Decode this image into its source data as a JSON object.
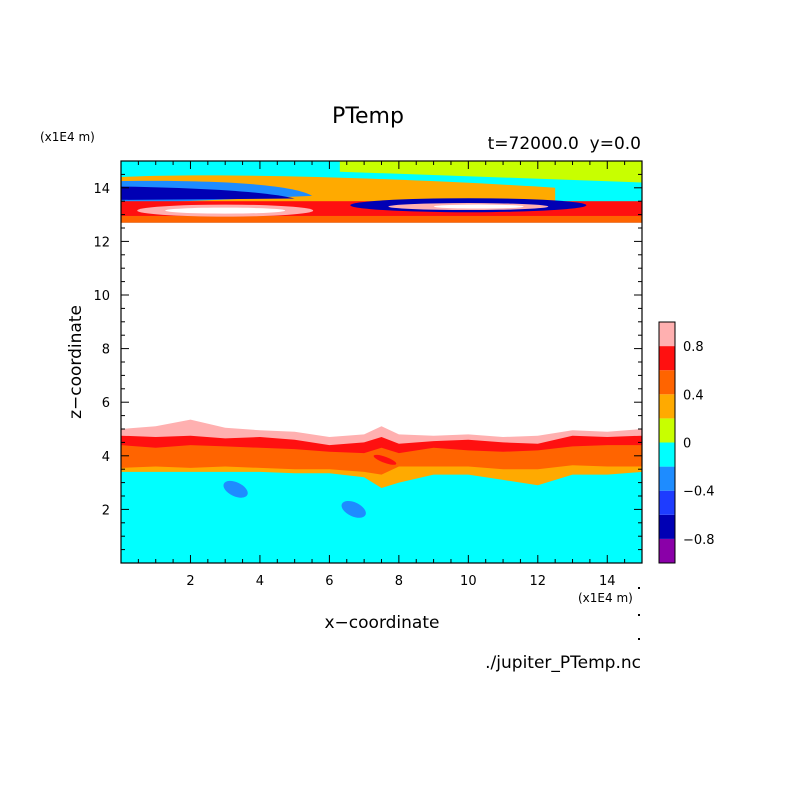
{
  "chart_data": {
    "type": "heatmap",
    "title": "PTemp",
    "subtitle": "t=72000.0  y=0.0",
    "xlabel": "x−coordinate",
    "ylabel": "z−coordinate",
    "x_unit": "(x1E4 m)",
    "y_unit": "(x1E4 m)",
    "footer": "./jupiter_PTemp.nc",
    "xlim": [
      0,
      15
    ],
    "ylim": [
      0,
      15
    ],
    "xticks": [
      2,
      4,
      6,
      8,
      10,
      12,
      14
    ],
    "yticks": [
      2,
      4,
      6,
      8,
      10,
      12,
      14
    ],
    "xtick_labels": [
      "2",
      "4",
      "6",
      "8",
      "10",
      "12",
      "14"
    ],
    "ytick_labels": [
      "2",
      "4",
      "6",
      "8",
      "10",
      "12",
      "14"
    ],
    "colorbar": {
      "levels": [
        -1.0,
        -0.8,
        -0.6,
        -0.4,
        -0.2,
        0.0,
        0.2,
        0.4,
        0.6,
        0.8,
        1.0
      ],
      "colors": [
        "#8a00a8",
        "#0000b4",
        "#1e3cff",
        "#1e8cff",
        "#00ffff",
        "#c8ff00",
        "#ffaa00",
        "#ff6400",
        "#ff1010",
        "#ffb0b0"
      ],
      "tick_values": [
        0.8,
        0.4,
        0,
        -0.4,
        -0.8
      ],
      "tick_labels": [
        "0.8",
        "0.4",
        "0",
        "−0.4",
        "−0.8"
      ]
    },
    "lower_layer": {
      "z_range": [
        0,
        5.0
      ],
      "x": [
        0,
        1,
        2,
        3,
        4,
        5,
        6,
        7,
        7.5,
        8,
        9,
        10,
        11,
        12,
        13,
        14,
        15
      ],
      "top_0.8": [
        5.0,
        5.1,
        5.35,
        5.05,
        4.95,
        4.9,
        4.7,
        4.8,
        5.1,
        4.8,
        4.75,
        4.8,
        4.7,
        4.75,
        4.95,
        4.9,
        5.0
      ],
      "top_0.6": [
        4.75,
        4.7,
        4.75,
        4.65,
        4.7,
        4.6,
        4.4,
        4.5,
        4.7,
        4.45,
        4.55,
        4.6,
        4.5,
        4.45,
        4.75,
        4.7,
        4.75
      ],
      "top_0.4": [
        4.4,
        4.3,
        4.4,
        4.35,
        4.3,
        4.25,
        4.15,
        4.1,
        4.3,
        4.1,
        4.3,
        4.2,
        4.15,
        4.2,
        4.35,
        4.4,
        4.4
      ],
      "top_0.2": [
        3.55,
        3.6,
        3.55,
        3.6,
        3.55,
        3.5,
        3.5,
        3.4,
        3.3,
        3.6,
        3.6,
        3.6,
        3.5,
        3.5,
        3.65,
        3.6,
        3.6
      ],
      "top_0.0": [
        3.4,
        3.4,
        3.4,
        3.4,
        3.4,
        3.35,
        3.35,
        3.2,
        2.8,
        3.0,
        3.3,
        3.3,
        3.1,
        2.9,
        3.3,
        3.3,
        3.4
      ],
      "negative_blobs": [
        {
          "x": 3.3,
          "z": 2.75,
          "value": -0.3
        },
        {
          "x": 6.7,
          "z": 2.0,
          "value": -0.3
        }
      ]
    },
    "upper_layer": {
      "z_range": [
        12.7,
        15.0
      ],
      "bands": [
        {
          "z": 14.6,
          "value": -0.2
        },
        {
          "z": 13.8,
          "value": -0.6
        },
        {
          "z": 13.2,
          "value": 0.9
        },
        {
          "z": 12.9,
          "value": 0.6
        }
      ]
    }
  }
}
